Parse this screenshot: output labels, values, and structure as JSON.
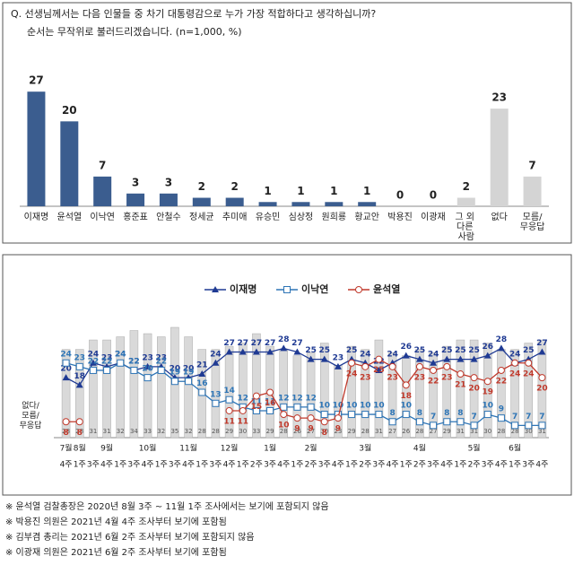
{
  "chart_data": [
    {
      "type": "bar",
      "title": "Q. 선생님께서는 다음 인물들 중 차기 대통령감으로 누가 가장 적합하다고 생각하십니까?",
      "subtitle": "순서는 무작위로 불러드리겠습니다. (n=1,000, %)",
      "categories": [
        "이재명",
        "윤석열",
        "이낙연",
        "홍준표",
        "안철수",
        "정세균",
        "추미애",
        "유승민",
        "심상정",
        "원희룡",
        "황교안",
        "박용진",
        "이광재",
        "그 외 다른 사람",
        "없다",
        "모름/무응답"
      ],
      "values": [
        27,
        20,
        7,
        3,
        3,
        2,
        2,
        1,
        1,
        1,
        1,
        0,
        0,
        2,
        23,
        7
      ],
      "colors": [
        "#3b5d8f",
        "#3b5d8f",
        "#3b5d8f",
        "#3b5d8f",
        "#3b5d8f",
        "#3b5d8f",
        "#3b5d8f",
        "#3b5d8f",
        "#3b5d8f",
        "#3b5d8f",
        "#3b5d8f",
        "#3b5d8f",
        "#3b5d8f",
        "#d4d4d4",
        "#d4d4d4",
        "#d4d4d4"
      ],
      "ylim": [
        0,
        30
      ]
    },
    {
      "type": "line",
      "x": [
        "4주",
        "1주",
        "3주",
        "4주",
        "1주",
        "3주",
        "4주",
        "1주",
        "3주",
        "4주",
        "1주",
        "3주",
        "4주",
        "1주",
        "2주",
        "3주",
        "4주",
        "1주",
        "2주",
        "3주",
        "4주",
        "1주",
        "2주",
        "3주",
        "4주",
        "1주",
        "2주",
        "3주",
        "4주",
        "1주",
        "2주",
        "3주",
        "4주",
        "1주",
        "3주",
        "4주"
      ],
      "months": [
        "7월",
        "8월",
        null,
        "9월",
        null,
        null,
        "10월",
        null,
        null,
        "11월",
        null,
        null,
        "12월",
        null,
        null,
        "1월",
        null,
        null,
        "2월",
        null,
        null,
        null,
        "3월",
        null,
        null,
        null,
        "4월",
        null,
        null,
        null,
        "5월",
        null,
        null,
        "6월",
        null,
        null
      ],
      "ylim": [
        0,
        32
      ],
      "y2lim": [
        0,
        35
      ],
      "series": [
        {
          "name": "없다/모름/무응답",
          "color": "#d9d9d9",
          "axis": "y2",
          "values": [
            28,
            28,
            31,
            31,
            32,
            34,
            33,
            32,
            35,
            32,
            28,
            28,
            29,
            30,
            33,
            29,
            28,
            26,
            27,
            30,
            23,
            29,
            28,
            31,
            27,
            26,
            28,
            27,
            29,
            31,
            31,
            30,
            28,
            28,
            30,
            31
          ]
        },
        {
          "name": "이재명",
          "color": "#1f3a93",
          "marker": "triangle",
          "values": [
            20,
            18,
            24,
            23,
            24,
            22,
            23,
            23,
            20,
            20,
            21,
            24,
            27,
            27,
            27,
            27,
            28,
            27,
            25,
            25,
            23,
            25,
            24,
            22,
            24,
            26,
            25,
            24,
            25,
            25,
            25,
            26,
            28,
            24,
            25,
            27
          ]
        },
        {
          "name": "이낙연",
          "color": "#2e75b6",
          "marker": "square",
          "values": [
            24,
            23,
            22,
            22,
            24,
            22,
            20,
            22,
            19,
            19,
            16,
            13,
            14,
            12,
            11,
            11,
            12,
            12,
            12,
            10,
            10,
            10,
            10,
            10,
            8,
            10,
            8,
            7,
            8,
            8,
            7,
            10,
            9,
            7,
            7,
            7
          ]
        },
        {
          "name": "윤석열",
          "color": "#c0392b",
          "marker": "circle",
          "values": [
            8,
            8,
            null,
            null,
            null,
            null,
            null,
            null,
            null,
            null,
            null,
            null,
            11,
            11,
            15,
            16,
            10,
            9,
            9,
            8,
            9,
            24,
            23,
            25,
            23,
            18,
            23,
            22,
            23,
            21,
            20,
            19,
            22,
            24,
            24,
            20
          ]
        }
      ]
    }
  ],
  "notes": [
    "※ 윤석열 검찰총장은 2020년 8월 3주 ~ 11월 1주 조사에서는 보기에 포함되지 않음",
    "※ 박용진 의원은 2021년 4월 4주 조사부터 보기에 포함됨",
    "※ 김부겸 총리는 2021년 6월 2주 조사부터 보기에 포함되지 않음",
    "※ 이광재 의원은 2021년 6월 2주 조사부터 보기에 포함됨"
  ]
}
